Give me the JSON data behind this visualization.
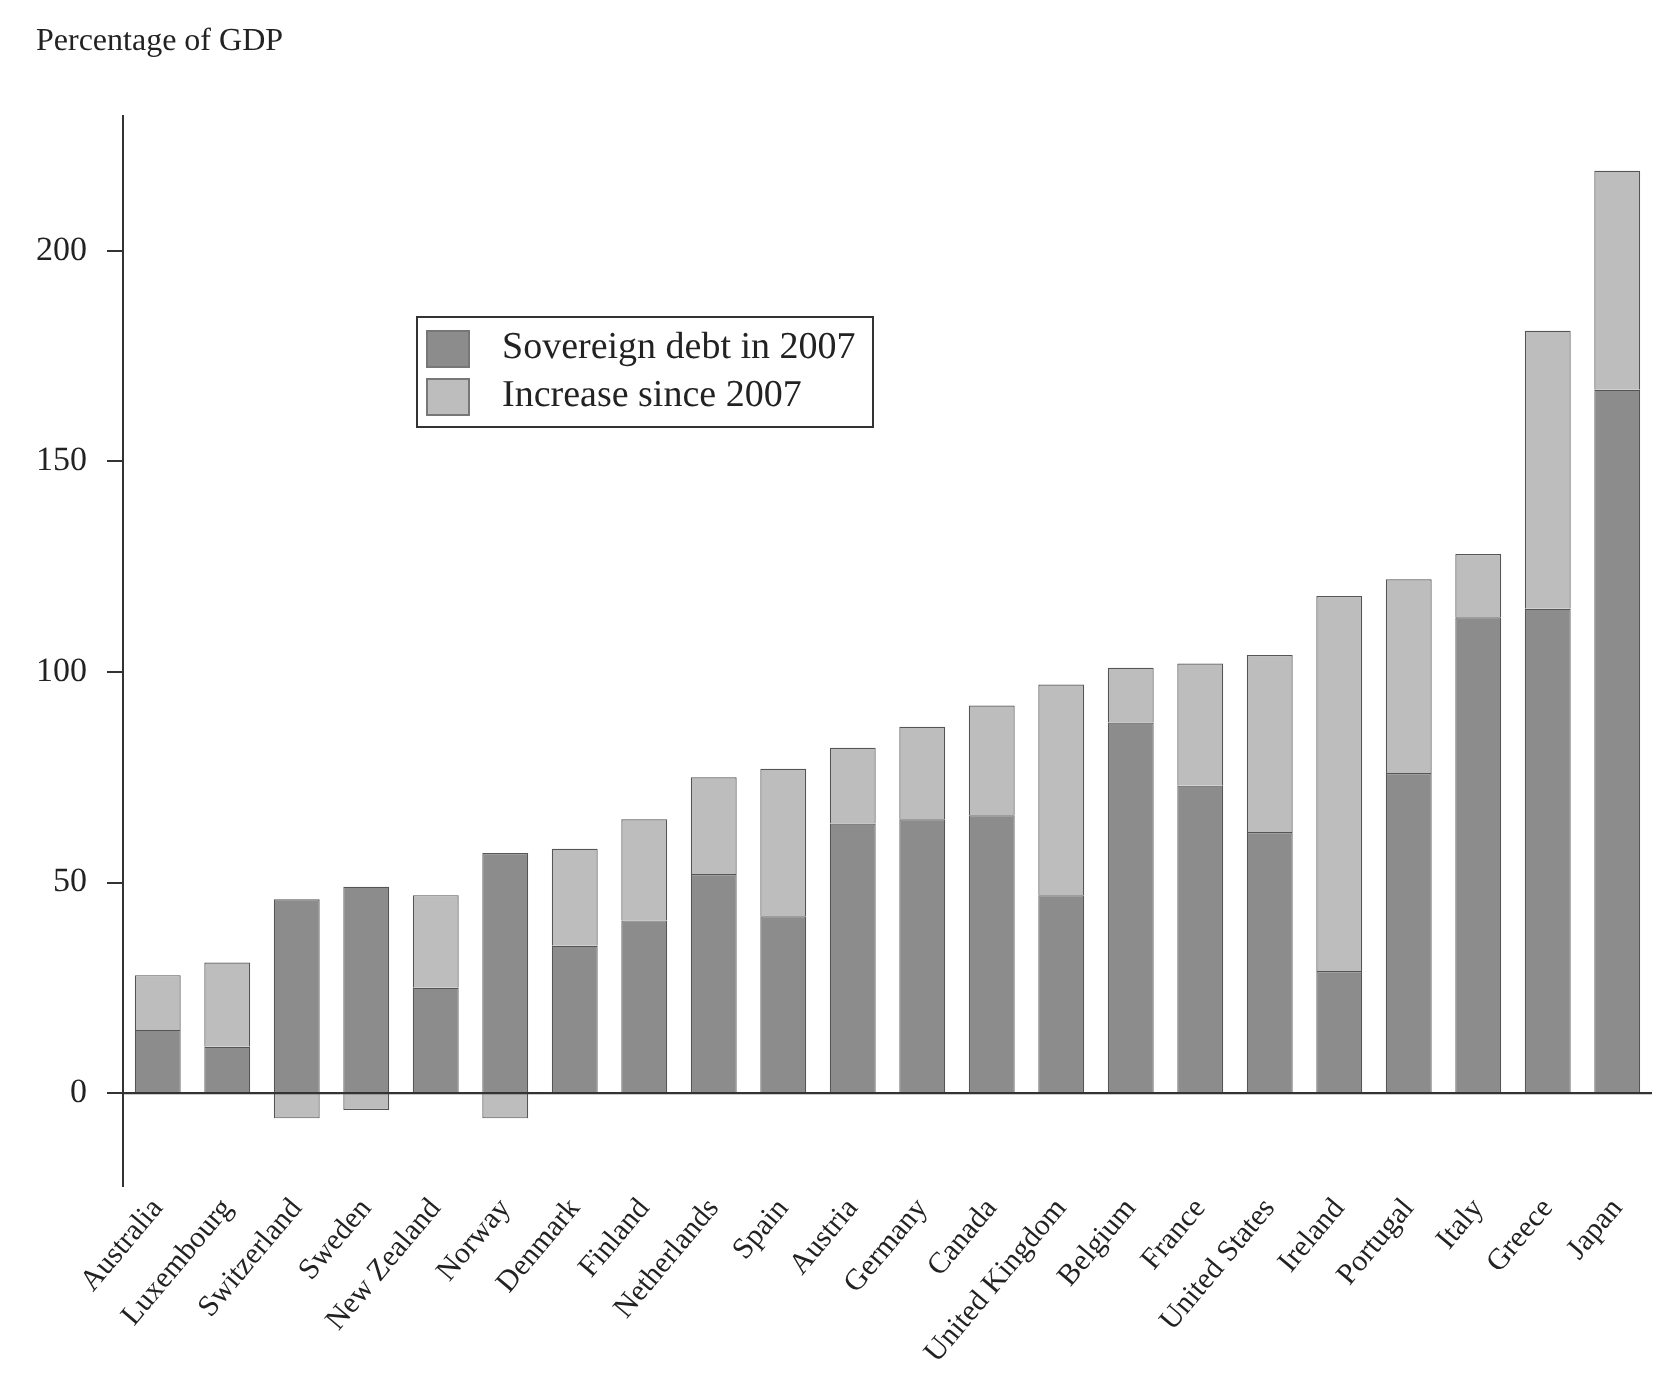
{
  "chart_data": {
    "type": "bar",
    "ylabel": "Percentage of GDP",
    "stacked": true,
    "legend": "top left",
    "categories": [
      "Australia",
      "Luxembourg",
      "Switzerland",
      "Sweden",
      "New Zealand",
      "Norway",
      "Denmark",
      "Finland",
      "Netherlands",
      "Spain",
      "Austria",
      "Germany",
      "Canada",
      "United Kingdom",
      "Belgium",
      "France",
      "United States",
      "Ireland",
      "Portugal",
      "Italy",
      "Greece",
      "Japan"
    ],
    "series": [
      {
        "name": "Sovereign debt in 2007",
        "color": "#8c8c8c",
        "values": [
          15,
          11,
          46,
          49,
          25,
          57,
          35,
          41,
          52,
          42,
          64,
          65,
          66,
          47,
          88,
          73,
          62,
          29,
          76,
          113,
          115,
          167
        ]
      },
      {
        "name": "Increase since 2007",
        "color": "#bdbdbd",
        "values": [
          13,
          20,
          -6,
          -4,
          22,
          -6,
          23,
          24,
          23,
          35,
          18,
          22,
          26,
          50,
          13,
          29,
          42,
          89,
          46,
          15,
          66,
          52
        ]
      }
    ],
    "ref_lines": [
      {
        "axis": "y",
        "value": 0,
        "color": "#333333"
      }
    ],
    "ylim": [
      -22,
      232
    ],
    "yticks": [
      0,
      50,
      100,
      150,
      200
    ]
  }
}
